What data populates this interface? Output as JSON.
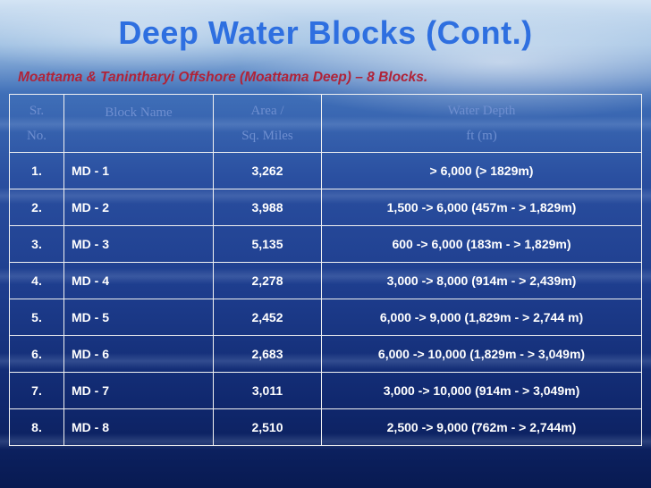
{
  "slide": {
    "title": "Deep Water Blocks (Cont.)",
    "subtitle": "Moattama & Tanintharyi Offshore (Moattama Deep) – 8 Blocks."
  },
  "table": {
    "headers": {
      "sr": [
        "Sr.",
        "No."
      ],
      "name": [
        "Block Name"
      ],
      "area": [
        "Area /",
        "Sq. Miles"
      ],
      "depth": [
        "Water Depth",
        "ft (m)"
      ]
    },
    "rows": [
      {
        "sr": "1.",
        "name": "MD - 1",
        "area": "3,262",
        "depth": "> 6,000  (> 1829m)"
      },
      {
        "sr": "2.",
        "name": "MD - 2",
        "area": "3,988",
        "depth": "1,500 -> 6,000 (457m - > 1,829m)"
      },
      {
        "sr": "3.",
        "name": "MD - 3",
        "area": "5,135",
        "depth": "600 -> 6,000 (183m - > 1,829m)"
      },
      {
        "sr": "4.",
        "name": "MD - 4",
        "area": "2,278",
        "depth": "3,000 -> 8,000 (914m - > 2,439m)"
      },
      {
        "sr": "5.",
        "name": "MD - 5",
        "area": "2,452",
        "depth": "6,000 -> 9,000 (1,829m - > 2,744 m)"
      },
      {
        "sr": "6.",
        "name": "MD - 6",
        "area": "2,683",
        "depth": "6,000 -> 10,000 (1,829m - > 3,049m)"
      },
      {
        "sr": "7.",
        "name": "MD - 7",
        "area": "3,011",
        "depth": "3,000 -> 10,000 (914m - > 3,049m)"
      },
      {
        "sr": "8.",
        "name": "MD - 8",
        "area": "2,510",
        "depth": "2,500 -> 9,000 (762m - > 2,744m)"
      }
    ]
  }
}
